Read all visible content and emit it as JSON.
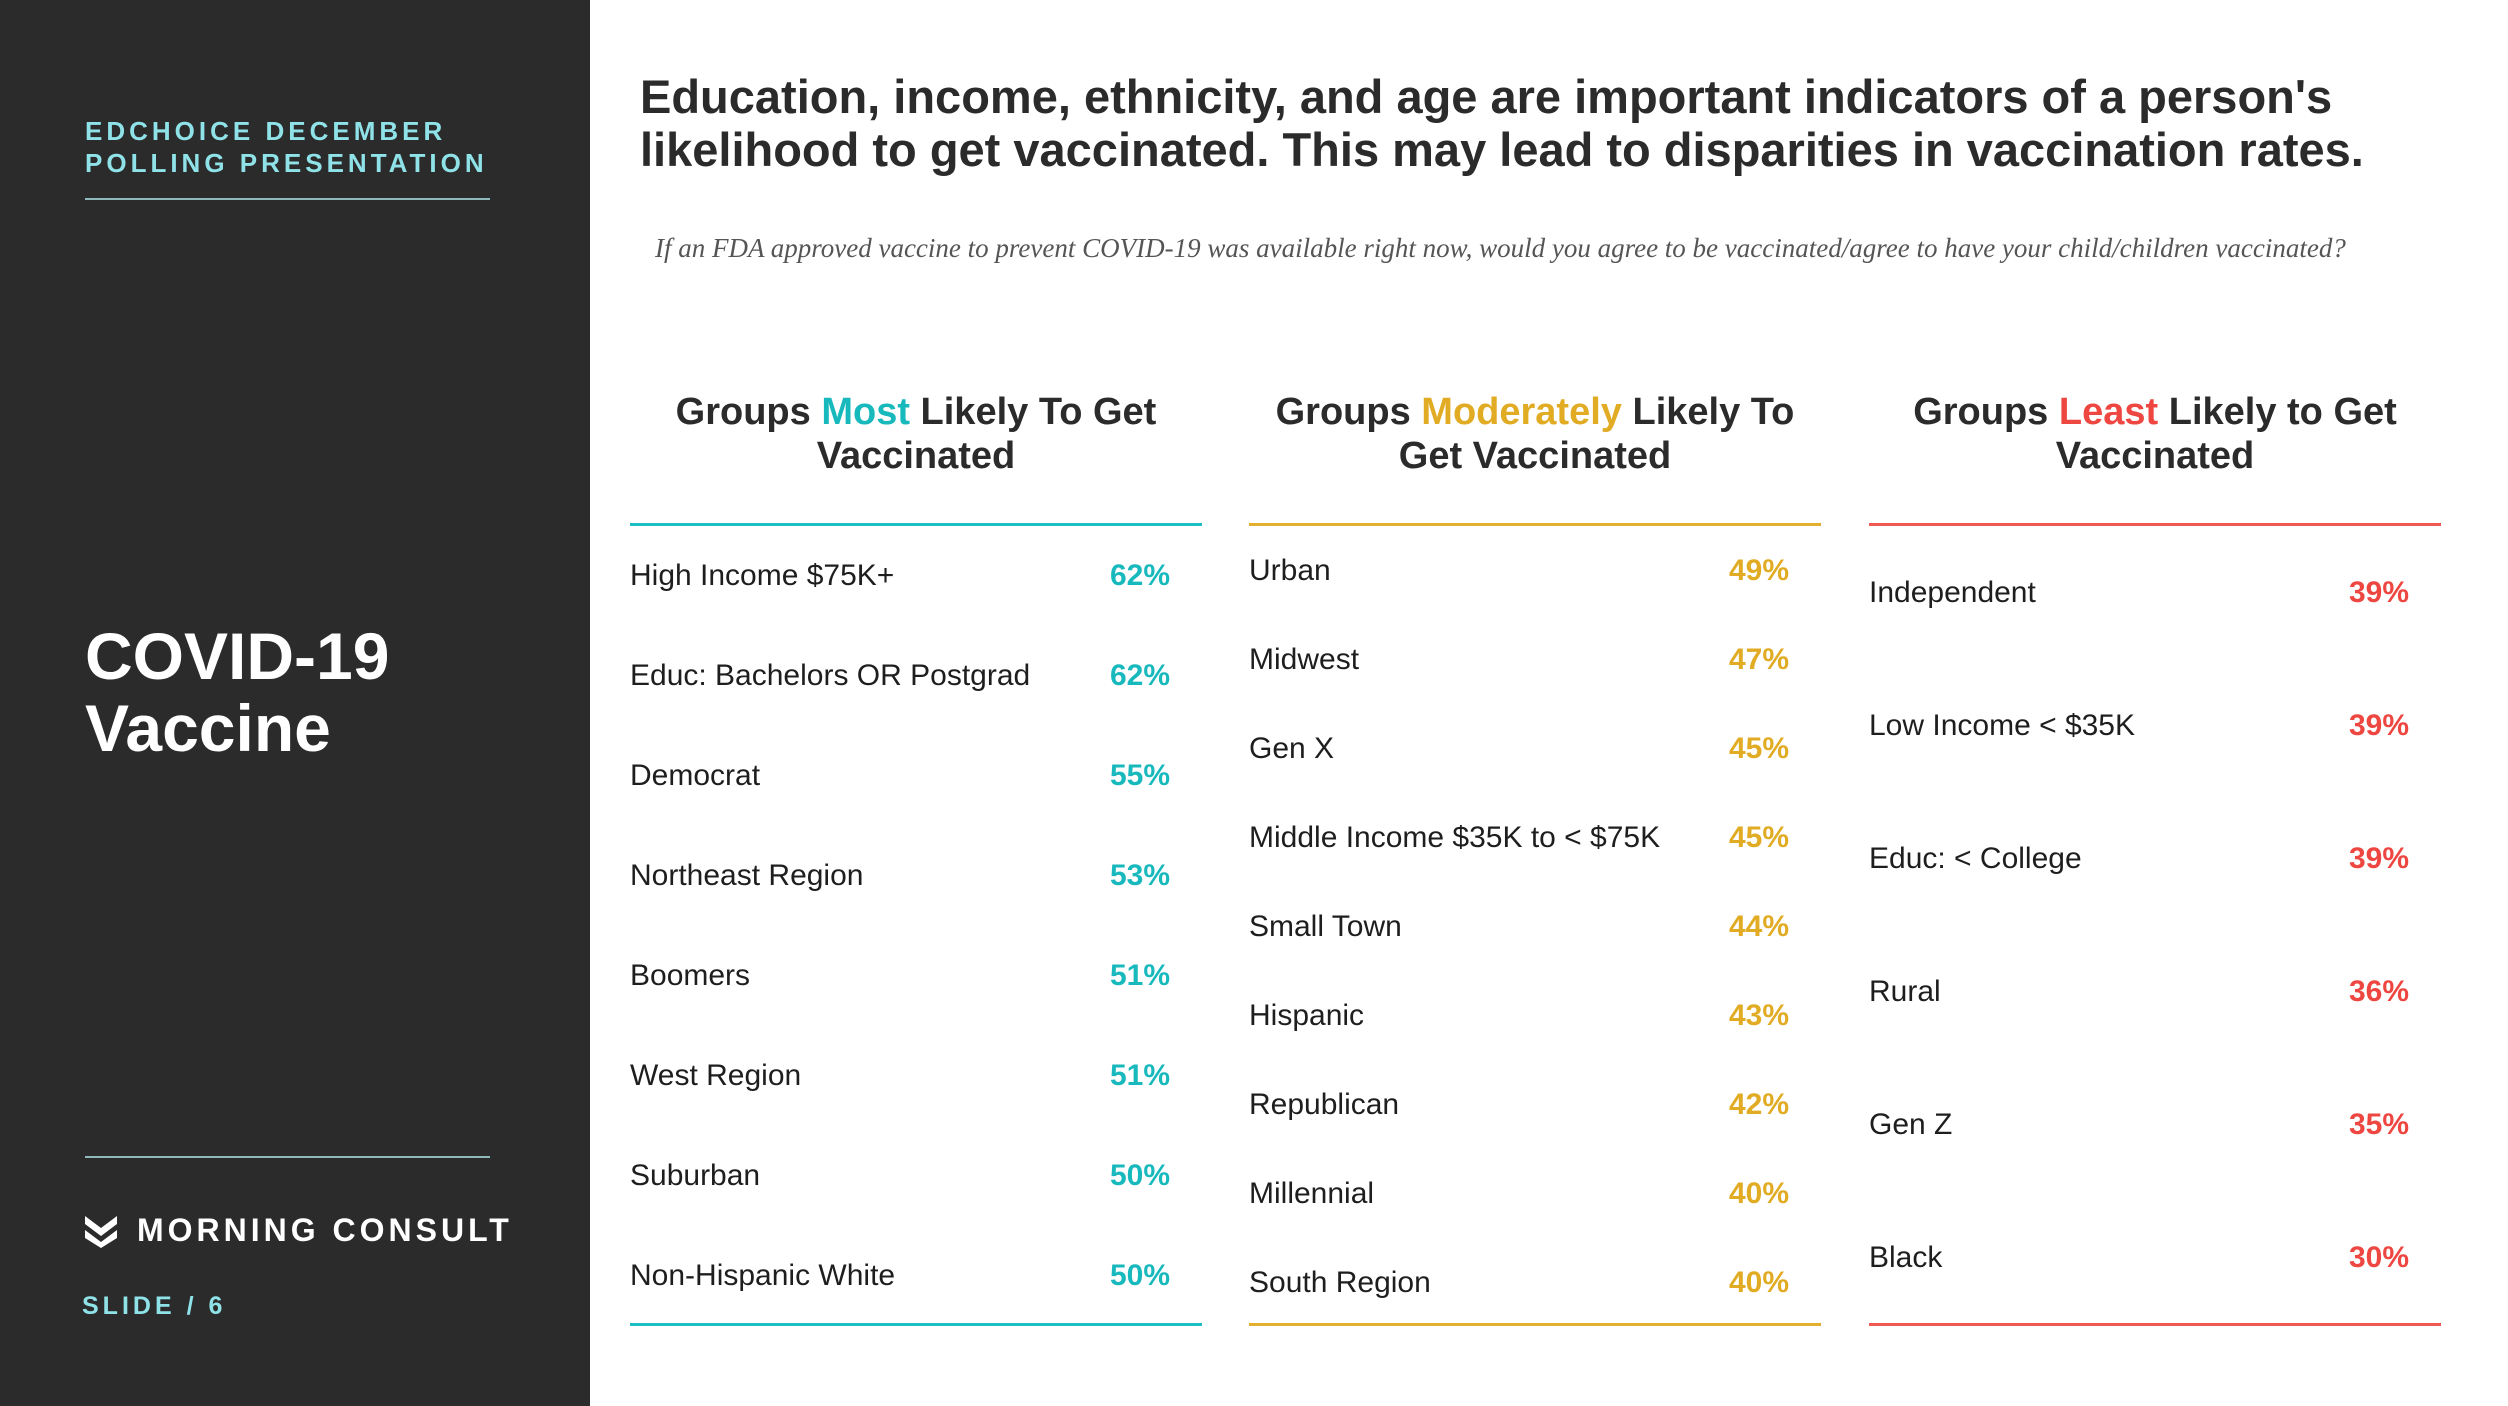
{
  "sidebar": {
    "deck_label_line1": "EDCHOICE DECEMBER",
    "deck_label_line2": "POLLING PRESENTATION",
    "title_line1": "COVID-19",
    "title_line2": "Vaccine",
    "brand": "MORNING CONSULT",
    "slide_label": "SLIDE /  6"
  },
  "headline": "Education, income, ethnicity, and age are important indicators of a person's likelihood to get vaccinated. This may lead to disparities in vaccination rates.",
  "question": "If an FDA approved vaccine to prevent COVID-19 was available right now, would you agree to be vaccinated/agree to have your child/children vaccinated?",
  "columns": [
    {
      "head_pre": "Groups ",
      "head_highlight": "Most",
      "head_post": " Likely To Get Vaccinated",
      "color": "#18b9bd",
      "rows": [
        {
          "label": "High Income $75K+",
          "value": "62%"
        },
        {
          "label": "Educ: Bachelors OR Postgrad",
          "value": "62%"
        },
        {
          "label": "Democrat",
          "value": "55%"
        },
        {
          "label": "Northeast Region",
          "value": "53%"
        },
        {
          "label": "Boomers",
          "value": "51%"
        },
        {
          "label": "West Region",
          "value": "51%"
        },
        {
          "label": "Suburban",
          "value": "50%"
        },
        {
          "label": "Non-Hispanic White",
          "value": "50%"
        }
      ]
    },
    {
      "head_pre": "Groups ",
      "head_highlight": "Moderately",
      "head_post": " Likely To Get Vaccinated",
      "color": "#e1ac24",
      "rows": [
        {
          "label": "Urban",
          "value": "49%"
        },
        {
          "label": "Midwest",
          "value": "47%"
        },
        {
          "label": "Gen X",
          "value": "45%"
        },
        {
          "label": "Middle Income $35K to < $75K",
          "value": "45%"
        },
        {
          "label": "Small Town",
          "value": "44%"
        },
        {
          "label": "Hispanic",
          "value": "43%"
        },
        {
          "label": "Republican",
          "value": "42%"
        },
        {
          "label": "Millennial",
          "value": "40%"
        },
        {
          "label": "South Region",
          "value": "40%"
        }
      ]
    },
    {
      "head_pre": "Groups ",
      "head_highlight": "Least",
      "head_post": " Likely to Get Vaccinated",
      "color": "#ee4640",
      "rows": [
        {
          "label": "Independent",
          "value": "39%"
        },
        {
          "label": "Low Income < $35K",
          "value": "39%"
        },
        {
          "label": "Educ: < College",
          "value": "39%"
        },
        {
          "label": "Rural",
          "value": "36%"
        },
        {
          "label": "Gen Z",
          "value": "35%"
        },
        {
          "label": "Black",
          "value": "30%"
        }
      ]
    }
  ]
}
